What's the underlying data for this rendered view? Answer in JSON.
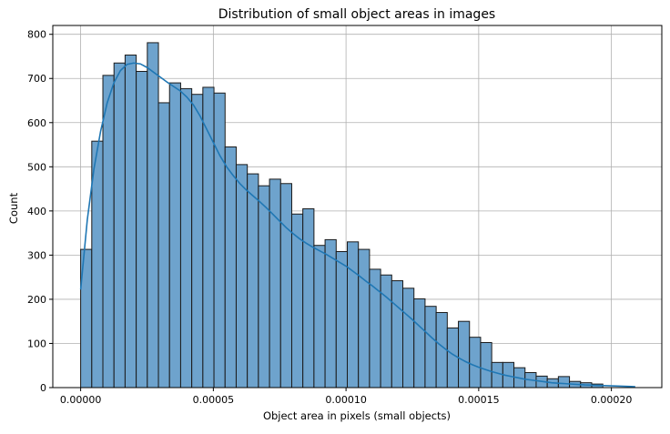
{
  "chart_data": {
    "type": "bar",
    "subtype": "histogram-with-kde",
    "title": "Distribution of small object areas in images",
    "xlabel": "Object area in pixels (small objects)",
    "ylabel": "Count",
    "xlim": [
      -1.05e-05,
      0.000219
    ],
    "ylim": [
      0,
      820
    ],
    "grid": true,
    "xticks": [
      0,
      5e-05,
      0.0001,
      0.00015,
      0.0002
    ],
    "xtick_labels": [
      "0.00000",
      "0.00005",
      "0.00010",
      "0.00015",
      "0.00020"
    ],
    "yticks": [
      0,
      100,
      200,
      300,
      400,
      500,
      600,
      700,
      800
    ],
    "ytick_labels": [
      "0",
      "100",
      "200",
      "300",
      "400",
      "500",
      "600",
      "700",
      "800"
    ],
    "bin_start": 0,
    "bin_width": 4.1865e-06,
    "counts": [
      313,
      558,
      707,
      735,
      753,
      716,
      781,
      645,
      690,
      677,
      664,
      680,
      667,
      545,
      505,
      484,
      457,
      472,
      462,
      393,
      405,
      322,
      335,
      308,
      330,
      313,
      268,
      255,
      242,
      225,
      201,
      184,
      170,
      135,
      150,
      114,
      102,
      57,
      57,
      45,
      34,
      26,
      20,
      25,
      14,
      11,
      8
    ],
    "kde": {
      "x": [
        0,
        2.5e-06,
        5e-06,
        7.5e-06,
        1e-05,
        1.25e-05,
        1.5e-05,
        1.75e-05,
        2e-05,
        2.25e-05,
        2.5e-05,
        2.75e-05,
        3e-05,
        3.25e-05,
        3.5e-05,
        3.75e-05,
        4e-05,
        4.25e-05,
        4.5e-05,
        4.75e-05,
        5e-05,
        5.25e-05,
        5.5e-05,
        5.75e-05,
        6e-05,
        6.25e-05,
        6.5e-05,
        6.75e-05,
        7e-05,
        7.25e-05,
        7.5e-05,
        7.75e-05,
        8e-05,
        8.25e-05,
        8.5e-05,
        8.75e-05,
        9e-05,
        9.25e-05,
        9.5e-05,
        9.75e-05,
        0.0001,
        0.0001025,
        0.000105,
        0.0001075,
        0.00011,
        0.0001125,
        0.000115,
        0.0001175,
        0.00012,
        0.0001225,
        0.000125,
        0.0001275,
        0.00013,
        0.0001325,
        0.000135,
        0.0001375,
        0.00014,
        0.0001425,
        0.000145,
        0.0001475,
        0.00015,
        0.0001525,
        0.000155,
        0.0001575,
        0.00016,
        0.0001625,
        0.000165,
        0.0001675,
        0.00017,
        0.0001725,
        0.000175,
        0.0001775,
        0.00018,
        0.0001825,
        0.000185,
        0.0001875,
        0.00019,
        0.0001925,
        0.000195,
        0.0001975,
        0.0002,
        0.0002025,
        0.000205,
        0.0002075,
        0.000209
      ],
      "y": [
        222,
        380,
        495,
        580,
        645,
        690,
        718,
        732,
        735,
        733,
        725,
        714,
        703,
        692,
        682,
        672,
        658,
        640,
        615,
        585,
        555,
        525,
        500,
        480,
        462,
        447,
        434,
        421,
        407,
        392,
        377,
        362,
        349,
        337,
        327,
        318,
        310,
        302,
        293,
        284,
        275,
        264,
        253,
        241,
        230,
        218,
        206,
        193,
        180,
        167,
        154,
        140,
        126,
        112,
        99,
        87,
        76,
        67,
        59,
        52,
        46,
        41,
        36,
        32,
        28,
        25,
        22,
        19,
        17,
        15,
        13,
        11,
        10,
        9,
        8,
        7,
        6,
        5.5,
        5,
        4.5,
        4,
        3.5,
        3,
        2.5,
        2
      ]
    },
    "colors": {
      "bar_fill": "#6ea3cd",
      "bar_edge": "#1a1a1a",
      "kde_line": "#1f77b4",
      "grid": "#b0b0b0",
      "axes": "#000000"
    }
  }
}
